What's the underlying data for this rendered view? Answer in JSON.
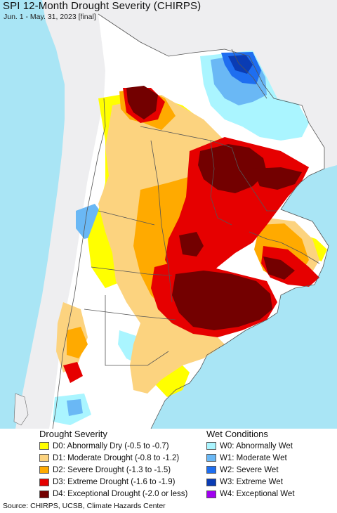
{
  "header": {
    "title": "SPI 12-Month Drought Severity (CHIRPS)",
    "subtitle": "Jun. 1 - May. 31, 2023 [final]"
  },
  "legend": {
    "drought_title": "Drought Severity",
    "wet_title": "Wet Conditions",
    "drought_items": [
      {
        "label": "D0: Abnormally Dry (-0.5 to -0.7)",
        "color": "#ffff00"
      },
      {
        "label": "D1: Moderate Drought (-0.8 to -1.2)",
        "color": "#fcd37f"
      },
      {
        "label": "D2: Severe Drought (-1.3 to -1.5)",
        "color": "#ffaa00"
      },
      {
        "label": "D3: Extreme Drought (-1.6 to -1.9)",
        "color": "#e60000"
      },
      {
        "label": "D4: Exceptional Drought (-2.0 or less)",
        "color": "#730000"
      }
    ],
    "wet_items": [
      {
        "label": "W0: Abnormally Wet",
        "color": "#aaf5ff"
      },
      {
        "label": "W1: Moderate Wet",
        "color": "#6ab8f5"
      },
      {
        "label": "W2: Severe Wet",
        "color": "#1e6ef0"
      },
      {
        "label": "W3: Extreme Wet",
        "color": "#0a3cb4"
      },
      {
        "label": "W4: Exceptional Wet",
        "color": "#a000f0"
      }
    ]
  },
  "map": {
    "ocean_color": "#a9e5f5",
    "land_outside_color": "#eeeef0",
    "land_color": "#ffffff"
  },
  "footer": {
    "source": "Source: CHIRPS, UCSB, Climate Hazards Center"
  }
}
